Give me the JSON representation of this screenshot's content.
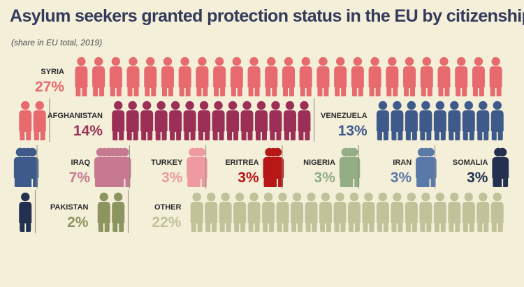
{
  "chart_data": {
    "type": "pictogram",
    "title": "Asylum seekers granted protection status in the EU by citizenship",
    "subtitle": "(share in EU total, 2019)",
    "unit": "%",
    "categories": [
      {
        "name": "SYRIA",
        "label": "27%",
        "value": 27,
        "color": "#e76a6e"
      },
      {
        "name": "AFGHANISTAN",
        "label": "14%",
        "value": 14,
        "color": "#9b2f56"
      },
      {
        "name": "VENEZUELA",
        "label": "13%",
        "value": 13,
        "color": "#3e5a8a"
      },
      {
        "name": "IRAQ",
        "label": "7%",
        "value": 7,
        "color": "#c87992"
      },
      {
        "name": "TURKEY",
        "label": "3%",
        "value": 3,
        "color": "#ef9aa0"
      },
      {
        "name": "ERITREA",
        "label": "3%",
        "value": 3,
        "color": "#b81717"
      },
      {
        "name": "NIGERIA",
        "label": "3%",
        "value": 3,
        "color": "#93ae86"
      },
      {
        "name": "IRAN",
        "label": "3%",
        "value": 3,
        "color": "#5b79a8"
      },
      {
        "name": "SOMALIA",
        "label": "3%",
        "value": 3,
        "color": "#23304f"
      },
      {
        "name": "PAKISTAN",
        "label": "2%",
        "value": 2,
        "color": "#8c9460"
      },
      {
        "name": "OTHER",
        "label": "22%",
        "value": 22,
        "color": "#c1c19a"
      }
    ]
  }
}
